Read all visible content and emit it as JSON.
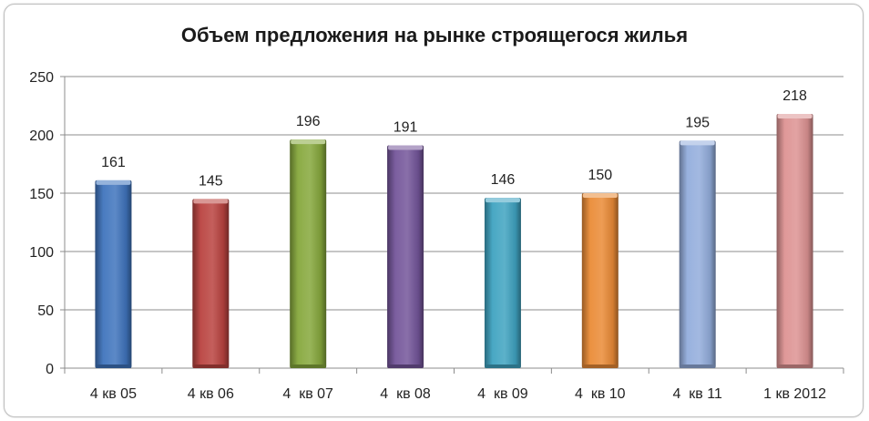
{
  "chart_data": {
    "type": "bar",
    "title": "Объем предложения на рынке строящегося жилья",
    "xlabel": "",
    "ylabel": "",
    "categories": [
      "4 кв 05",
      "4 кв 06",
      "4  кв 07",
      "4  кв 08",
      "4  кв 09",
      "4  кв 10",
      "4  кв 11",
      "1 кв 2012"
    ],
    "values": [
      161,
      145,
      196,
      191,
      146,
      150,
      195,
      218
    ],
    "data_labels": [
      "161",
      "145",
      "196",
      "191",
      "146",
      "150",
      "195",
      "218"
    ],
    "colors": [
      "#3f74bd",
      "#b9433f",
      "#86a83c",
      "#74559a",
      "#3fa3c1",
      "#ea8b36",
      "#93addc",
      "#dd9393"
    ],
    "ylim": [
      0,
      250
    ],
    "yticks": [
      0,
      50,
      100,
      150,
      200,
      250
    ],
    "ytick_labels": [
      "0",
      "50",
      "100",
      "150",
      "200",
      "250"
    ],
    "grid": true,
    "legend": "none"
  }
}
